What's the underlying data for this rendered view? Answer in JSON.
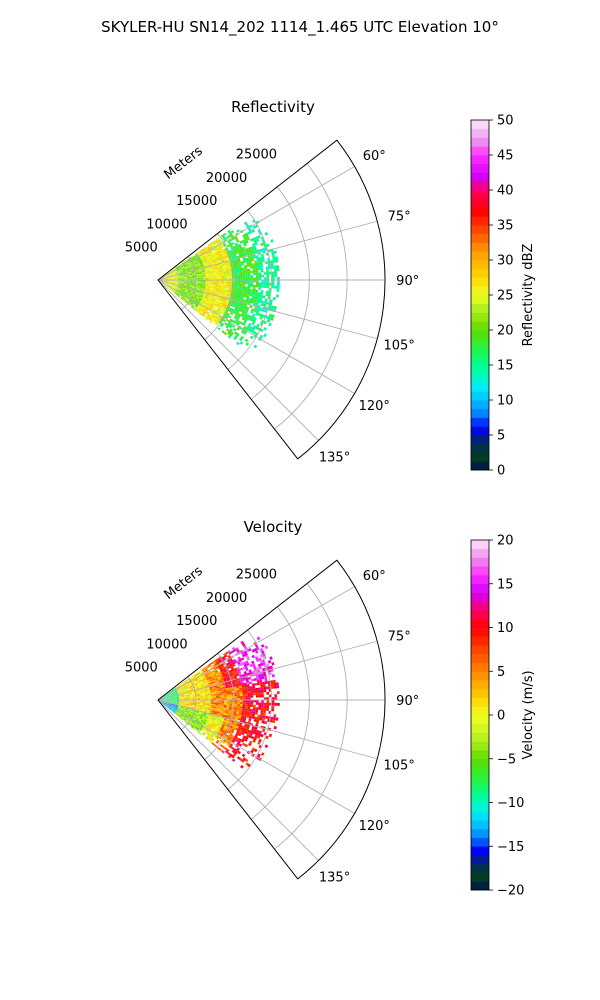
{
  "title": "SKYLER-HU  SN14_202  1114_1.465 UTC Elevation 10°",
  "chart_data": [
    {
      "type": "polar-sector",
      "title": "Reflectivity",
      "radial_axis_label": "Meters",
      "radial_ticks": [
        "5000",
        "10000",
        "15000",
        "20000",
        "25000"
      ],
      "radial_tick_values": [
        5000,
        10000,
        15000,
        20000,
        25000
      ],
      "rmax": 30000,
      "azimuth_range_deg": [
        52,
        142
      ],
      "azimuth_ticks": [
        "60°",
        "75°",
        "90°",
        "105°",
        "120°",
        "135°"
      ],
      "azimuth_tick_values": [
        60,
        75,
        90,
        105,
        120,
        135
      ],
      "grid": true,
      "colorbar": {
        "label": "Reflectivity dBZ",
        "min": 0,
        "max": 50,
        "ticks": [
          "0",
          "5",
          "10",
          "15",
          "20",
          "25",
          "30",
          "35",
          "40",
          "45",
          "50"
        ],
        "tick_values": [
          0,
          5,
          10,
          15,
          20,
          25,
          30,
          35,
          40,
          45,
          50
        ],
        "stops": [
          {
            "v": 0,
            "c": "#001050"
          },
          {
            "v": 2,
            "c": "#004020"
          },
          {
            "v": 4,
            "c": "#002a60"
          },
          {
            "v": 6,
            "c": "#0000ff"
          },
          {
            "v": 8,
            "c": "#0080ff"
          },
          {
            "v": 10,
            "c": "#00c0ff"
          },
          {
            "v": 12,
            "c": "#00f0f0"
          },
          {
            "v": 15,
            "c": "#00ff90"
          },
          {
            "v": 18,
            "c": "#30f030"
          },
          {
            "v": 20,
            "c": "#60d800"
          },
          {
            "v": 23,
            "c": "#b0ef20"
          },
          {
            "v": 25,
            "c": "#eeff20"
          },
          {
            "v": 28,
            "c": "#ffd000"
          },
          {
            "v": 31,
            "c": "#ffa000"
          },
          {
            "v": 34,
            "c": "#ff5000"
          },
          {
            "v": 37,
            "c": "#ff0000"
          },
          {
            "v": 40,
            "c": "#ff0060"
          },
          {
            "v": 42,
            "c": "#d000ff"
          },
          {
            "v": 45,
            "c": "#ff30ff"
          },
          {
            "v": 47,
            "c": "#ee90ee"
          },
          {
            "v": 50,
            "c": "#ffe8ff"
          }
        ]
      },
      "field": {
        "rmin": 0,
        "rmax_m": 16000,
        "az_min": 55,
        "az_max": 128,
        "layers": [
          {
            "r0": 0,
            "r1": 2500,
            "value": 25
          },
          {
            "r0": 2500,
            "r1": 6000,
            "value": 21
          },
          {
            "r0": 6000,
            "r1": 9500,
            "value": 26
          },
          {
            "r0": 9500,
            "r1": 13000,
            "value": 18
          },
          {
            "r0": 13000,
            "r1": 16000,
            "value": 15
          }
        ]
      }
    },
    {
      "type": "polar-sector",
      "title": "Velocity",
      "radial_axis_label": "Meters",
      "radial_ticks": [
        "5000",
        "10000",
        "15000",
        "20000",
        "25000"
      ],
      "radial_tick_values": [
        5000,
        10000,
        15000,
        20000,
        25000
      ],
      "rmax": 30000,
      "azimuth_range_deg": [
        52,
        142
      ],
      "azimuth_ticks": [
        "60°",
        "75°",
        "90°",
        "105°",
        "120°",
        "135°"
      ],
      "azimuth_tick_values": [
        60,
        75,
        90,
        105,
        120,
        135
      ],
      "grid": true,
      "colorbar": {
        "label": "Velocity (m/s)",
        "min": -20,
        "max": 20,
        "ticks": [
          "−20",
          "−15",
          "−10",
          "−5",
          "0",
          "5",
          "10",
          "15",
          "20"
        ],
        "tick_values": [
          -20,
          -15,
          -10,
          -5,
          0,
          5,
          10,
          15,
          20
        ],
        "stops": [
          {
            "v": -20,
            "c": "#001050"
          },
          {
            "v": -18.5,
            "c": "#004020"
          },
          {
            "v": -17,
            "c": "#002a60"
          },
          {
            "v": -15.5,
            "c": "#0000ff"
          },
          {
            "v": -14,
            "c": "#0080ff"
          },
          {
            "v": -12.5,
            "c": "#00c0ff"
          },
          {
            "v": -11,
            "c": "#00f0f0"
          },
          {
            "v": -9,
            "c": "#00ff90"
          },
          {
            "v": -7,
            "c": "#30f030"
          },
          {
            "v": -5,
            "c": "#60d800"
          },
          {
            "v": -3,
            "c": "#b0ef20"
          },
          {
            "v": 0,
            "c": "#eeff20"
          },
          {
            "v": 2,
            "c": "#ffd000"
          },
          {
            "v": 4,
            "c": "#ffa000"
          },
          {
            "v": 7,
            "c": "#ff5000"
          },
          {
            "v": 10,
            "c": "#ff0000"
          },
          {
            "v": 12,
            "c": "#ff0060"
          },
          {
            "v": 14,
            "c": "#d000ff"
          },
          {
            "v": 16,
            "c": "#ff30ff"
          },
          {
            "v": 18,
            "c": "#ee90ee"
          },
          {
            "v": 20,
            "c": "#ffe8ff"
          }
        ]
      },
      "field": {
        "rmin": 0,
        "rmax_m": 16000,
        "az_min": 55,
        "az_max": 128,
        "layers": [
          {
            "r0": 0,
            "r1": 2500,
            "value": -8
          },
          {
            "r0": 2500,
            "r1": 7000,
            "value": 1
          },
          {
            "r0": 7000,
            "r1": 11000,
            "value": 5
          },
          {
            "r0": 11000,
            "r1": 16000,
            "value": 10
          }
        ]
      }
    }
  ]
}
